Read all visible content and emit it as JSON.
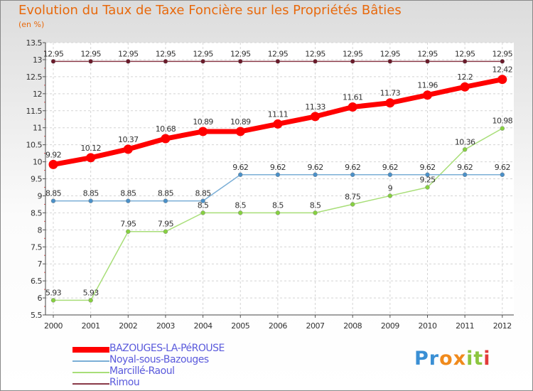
{
  "chart_data": {
    "type": "line",
    "title": "Evolution du Taux de Taxe Foncière sur les Propriétés Bâties",
    "unit_label": "(en %)",
    "x": [
      "2000",
      "2001",
      "2002",
      "2003",
      "2004",
      "2005",
      "2006",
      "2007",
      "2008",
      "2009",
      "2010",
      "2011",
      "2012"
    ],
    "ylim": [
      5.5,
      13.5
    ],
    "yticks": [
      "5.5",
      "6",
      "6.5",
      "7",
      "7.5",
      "8",
      "8.5",
      "9",
      "9.5",
      "10",
      "10.5",
      "11",
      "11.5",
      "12",
      "12.5",
      "13",
      "13.5"
    ],
    "series": [
      {
        "name": "BAZOUGES-LA-PéROUSE",
        "color": "#ff0000",
        "values": [
          9.92,
          10.12,
          10.37,
          10.68,
          10.89,
          10.89,
          11.11,
          11.33,
          11.61,
          11.73,
          11.96,
          12.2,
          12.42
        ],
        "labels": [
          "9.92",
          "10.12",
          "10.37",
          "10.68",
          "10.89",
          "10.89",
          "11.11",
          "11.33",
          "11.61",
          "11.73",
          "11.96",
          "12.2",
          "12.42"
        ]
      },
      {
        "name": "Noyal-sous-Bazouges",
        "color": "#7aaed6",
        "values": [
          8.85,
          8.85,
          8.85,
          8.85,
          8.85,
          9.62,
          9.62,
          9.62,
          9.62,
          9.62,
          9.62,
          9.62,
          9.62
        ],
        "labels": [
          "8.85",
          "8.85",
          "8.85",
          "8.85",
          "8.85",
          "9.62",
          "9.62",
          "9.62",
          "9.62",
          "9.62",
          "9.62",
          "9.62",
          "9.62"
        ]
      },
      {
        "name": "Marcillé-Raoul",
        "color": "#a8de78",
        "values": [
          5.93,
          5.93,
          7.95,
          7.95,
          8.5,
          8.5,
          8.5,
          8.5,
          8.75,
          9,
          9.25,
          10.36,
          10.98
        ],
        "labels": [
          "5.93",
          "5.93",
          "7.95",
          "7.95",
          "8.5",
          "8.5",
          "8.5",
          "8.5",
          "8.75",
          "9",
          "9.25",
          "10.36",
          "10.98"
        ]
      },
      {
        "name": "Rimou",
        "color": "#8a3a48",
        "values": [
          12.95,
          12.95,
          12.95,
          12.95,
          12.95,
          12.95,
          12.95,
          12.95,
          12.95,
          12.95,
          12.95,
          12.95,
          12.95
        ],
        "labels": [
          "12.95",
          "12.95",
          "12.95",
          "12.95",
          "12.95",
          "12.95",
          "12.95",
          "12.95",
          "12.95",
          "12.95",
          "12.95",
          "12.95",
          "12.95"
        ]
      }
    ]
  },
  "logo": {
    "letters": [
      "P",
      "r",
      "o",
      "x",
      "i",
      "t",
      "i"
    ],
    "colors": [
      "#3a8fd4",
      "#3a8fd4",
      "#f08a1c",
      "#f08a1c",
      "#8cc63f",
      "#8cc63f",
      "#e23a3a"
    ]
  }
}
